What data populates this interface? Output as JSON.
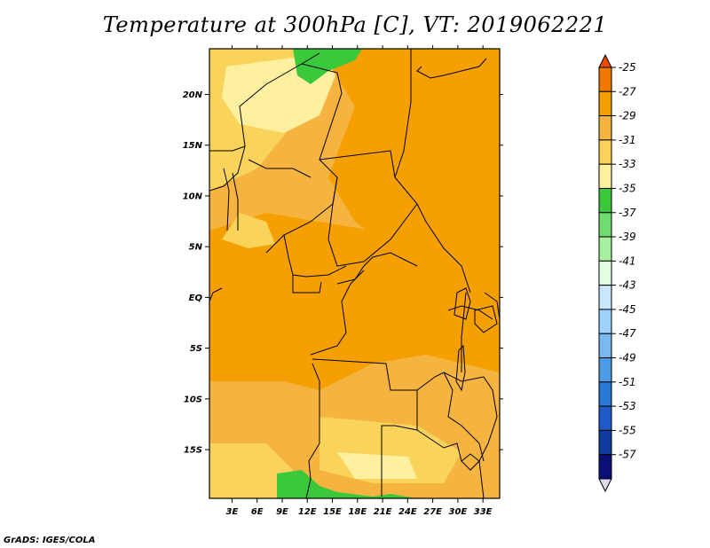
{
  "title": "Temperature at 300hPa [C], VT: 2019062221",
  "footer": "GrADS: IGES/COLA",
  "chart_data": {
    "type": "heatmap",
    "title": "Temperature at 300hPa [C], VT: 2019062221",
    "x_axis": {
      "ticks": [
        "3E",
        "6E",
        "9E",
        "12E",
        "15E",
        "18E",
        "21E",
        "24E",
        "27E",
        "30E",
        "33E"
      ],
      "tick_values": [
        3,
        6,
        9,
        12,
        15,
        18,
        21,
        24,
        27,
        30,
        33
      ],
      "range": [
        0.3,
        35.0
      ]
    },
    "y_axis": {
      "ticks": [
        "20N",
        "15N",
        "10N",
        "5N",
        "EQ",
        "5S",
        "10S",
        "15S"
      ],
      "tick_values": [
        20,
        15,
        10,
        5,
        0,
        -5,
        -10,
        -15
      ],
      "range": [
        -19.8,
        24.5
      ]
    },
    "colorbar": {
      "levels": [
        "-25",
        "-27",
        "-29",
        "-31",
        "-33",
        "-35",
        "-37",
        "-39",
        "-41",
        "-43",
        "-45",
        "-47",
        "-49",
        "-51",
        "-53",
        "-55",
        "-57"
      ],
      "colors": [
        "#f04a00",
        "#f07800",
        "#f5a000",
        "#f5b440",
        "#fad35a",
        "#fff0a0",
        "#3bc83b",
        "#6edc6e",
        "#a6f0a0",
        "#e1ffe1",
        "#c8e8ff",
        "#a0d2ff",
        "#78b9f0",
        "#4b9be6",
        "#2878d7",
        "#1e5ac8",
        "#0f3ca0",
        "#0a0f78",
        "#dcdcf0"
      ]
    },
    "field_colors": {
      "c29": "#f5a000",
      "c31": "#f5b440",
      "c33": "#fad35a",
      "c35": "#fff0a0",
      "c37": "#3bc83b"
    }
  }
}
